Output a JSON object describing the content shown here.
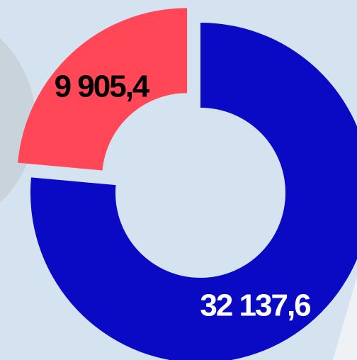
{
  "chart_data": {
    "type": "donut",
    "values": [
      9905.4,
      32137.6
    ],
    "value_labels": [
      "9 905,4",
      "32 137,6"
    ],
    "colors": [
      "#ff4757",
      "#0a0ac4"
    ],
    "label_colors": [
      "#000000",
      "#ffffff"
    ]
  }
}
